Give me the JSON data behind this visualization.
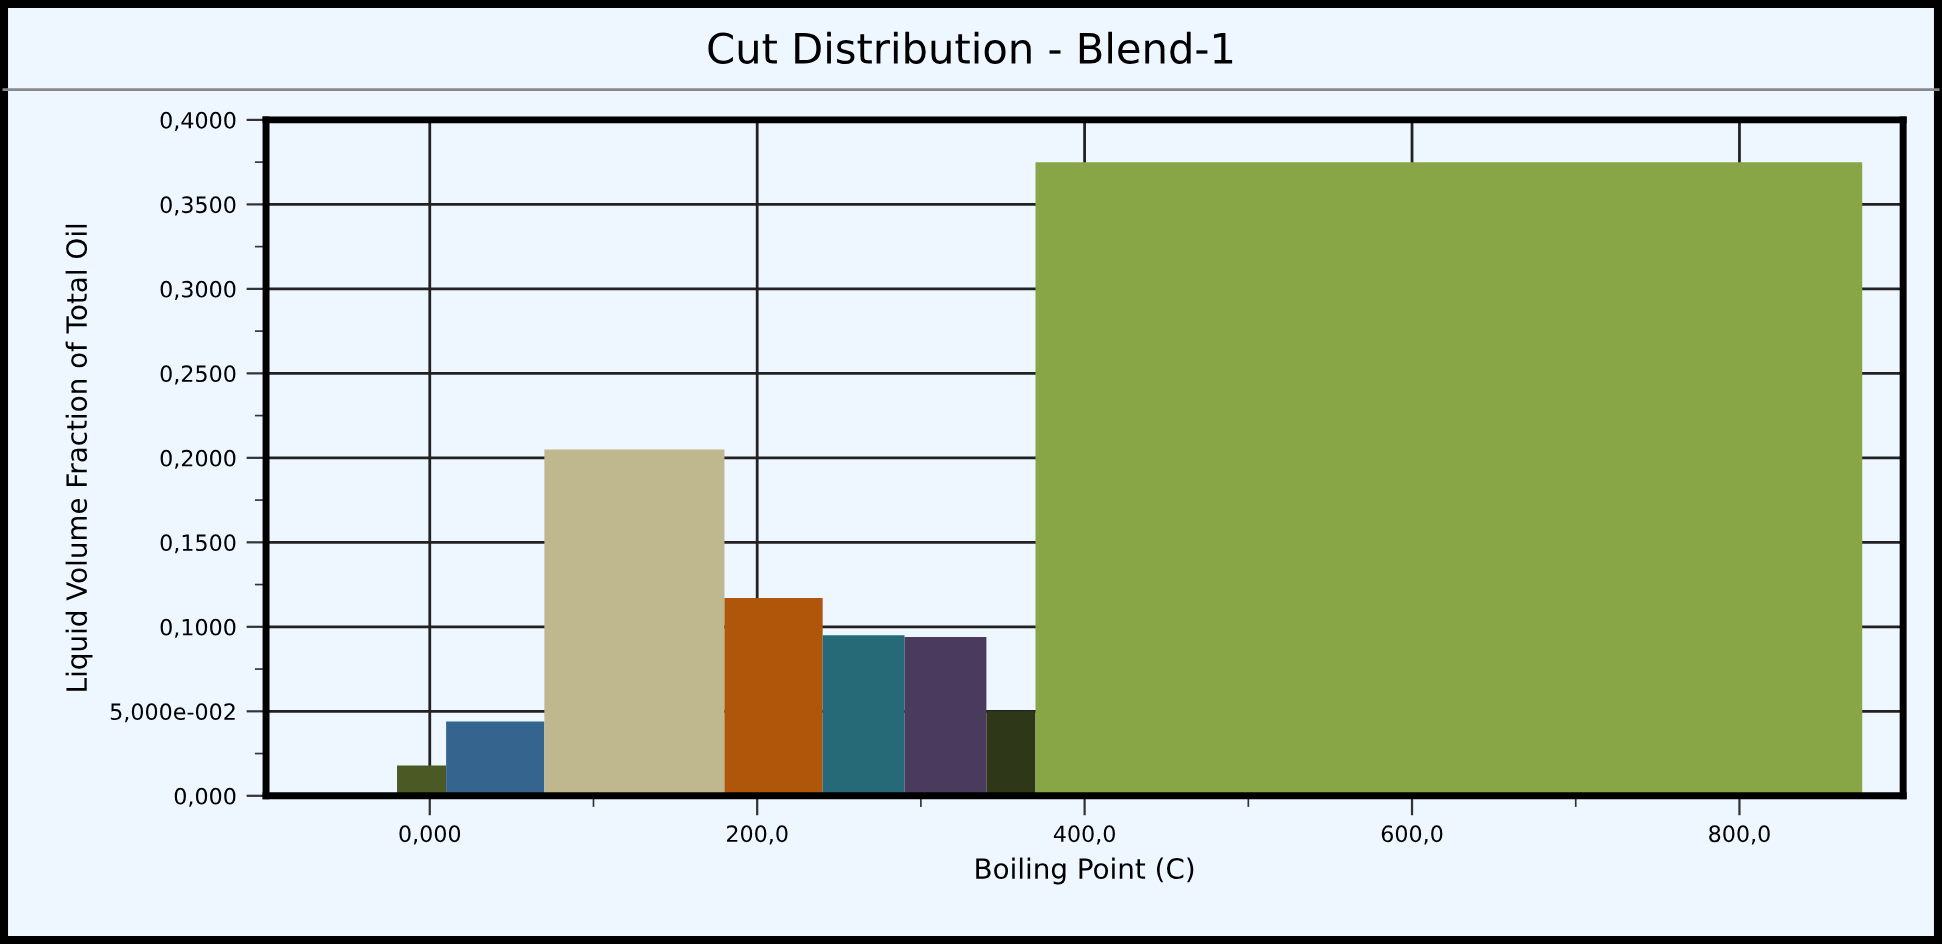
{
  "chart_data": {
    "type": "histogram",
    "title": "Cut Distribution - Blend-1",
    "xlabel": "Boiling Point (C)",
    "ylabel": "Liquid Volume Fraction of Total Oil",
    "bins": [
      -20,
      10,
      70,
      180,
      240,
      290,
      340,
      370,
      875
    ],
    "values": [
      0.018,
      0.044,
      0.205,
      0.117,
      0.095,
      0.094,
      0.05,
      0.375
    ],
    "colors": [
      "#4b5a24",
      "#35648e",
      "#bfb88e",
      "#b0560a",
      "#266a78",
      "#4a3a5e",
      "#2e3818",
      "#89a646"
    ],
    "xlim": [
      -100,
      900
    ],
    "xticks": [
      {
        "value": 0,
        "label": "0,000"
      },
      {
        "value": 100,
        "label": null
      },
      {
        "value": 200,
        "label": "200,0"
      },
      {
        "value": 300,
        "label": null
      },
      {
        "value": 400,
        "label": "400,0"
      },
      {
        "value": 500,
        "label": null
      },
      {
        "value": 600,
        "label": "600,0"
      },
      {
        "value": 700,
        "label": null
      },
      {
        "value": 800,
        "label": "800,0"
      }
    ],
    "ylim": [
      0,
      0.4
    ],
    "yticks": [
      {
        "value": 0,
        "label": "0,000"
      },
      {
        "value": 0.025,
        "label": null
      },
      {
        "value": 0.05,
        "label": "5,000e-002"
      },
      {
        "value": 0.075,
        "label": null
      },
      {
        "value": 0.1,
        "label": "0,1000"
      },
      {
        "value": 0.125,
        "label": null
      },
      {
        "value": 0.15,
        "label": "0,1500"
      },
      {
        "value": 0.175,
        "label": null
      },
      {
        "value": 0.2,
        "label": "0,2000"
      },
      {
        "value": 0.225,
        "label": null
      },
      {
        "value": 0.25,
        "label": "0,2500"
      },
      {
        "value": 0.275,
        "label": null
      },
      {
        "value": 0.3,
        "label": "0,3000"
      },
      {
        "value": 0.325,
        "label": null
      },
      {
        "value": 0.35,
        "label": "0,3500"
      },
      {
        "value": 0.375,
        "label": null
      },
      {
        "value": 0.4,
        "label": "0,4000"
      }
    ],
    "grid": true
  }
}
